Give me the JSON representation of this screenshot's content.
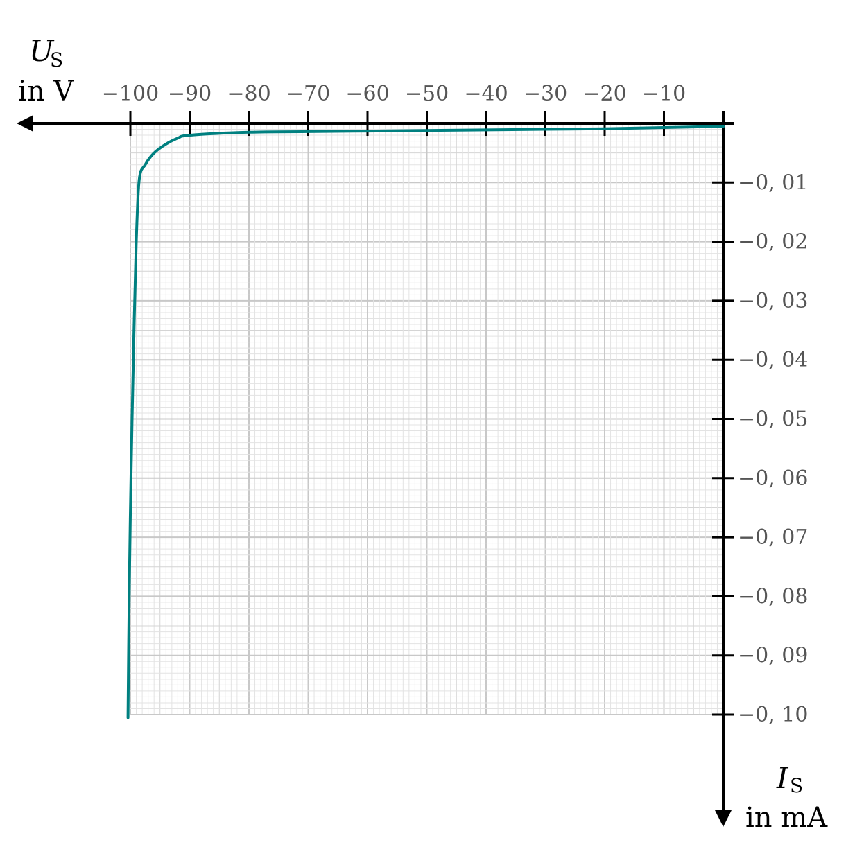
{
  "chart_data": {
    "type": "line",
    "colors": {
      "curve": "#008080",
      "axis": "#000000"
    },
    "x_axis": {
      "range": [
        -100,
        0
      ],
      "ticks": [
        -100,
        -90,
        -80,
        -70,
        -60,
        -50,
        -40,
        -30,
        -20,
        -10
      ],
      "tick_labels": [
        "−100",
        "−90",
        "−80",
        "−70",
        "−60",
        "−50",
        "−40",
        "−30",
        "−20",
        "−10"
      ],
      "label_symbol": "U",
      "label_subscript": "S",
      "label_unit": "in V",
      "direction": "increasing to the left (negative values to the left)"
    },
    "y_axis": {
      "range": [
        -0.1,
        0
      ],
      "ticks": [
        -0.01,
        -0.02,
        -0.03,
        -0.04,
        -0.05,
        -0.06,
        -0.07,
        -0.08,
        -0.09,
        -0.1
      ],
      "tick_labels": [
        "−0, 01",
        "−0, 02",
        "−0, 03",
        "−0, 04",
        "−0, 05",
        "−0, 06",
        "−0, 07",
        "−0, 08",
        "−0, 09",
        "−0, 10"
      ],
      "label_symbol": "I",
      "label_subscript": "S",
      "label_unit": "in mA",
      "direction": "increasing downward (negative values downward)"
    },
    "grid": true,
    "series": [
      {
        "points": [
          [
            0,
            -0.0005
          ],
          [
            -10,
            -0.0007
          ],
          [
            -20,
            -0.0009
          ],
          [
            -30,
            -0.001
          ],
          [
            -40,
            -0.0011
          ],
          [
            -50,
            -0.0012
          ],
          [
            -60,
            -0.0013
          ],
          [
            -70,
            -0.0014
          ],
          [
            -80,
            -0.0015
          ],
          [
            -90,
            -0.002
          ],
          [
            -92,
            -0.0025
          ],
          [
            -94,
            -0.0035
          ],
          [
            -96,
            -0.005
          ],
          [
            -97.5,
            -0.007
          ],
          [
            -98.5,
            -0.0095
          ],
          [
            -99,
            -0.02
          ],
          [
            -99.5,
            -0.04
          ],
          [
            -99.9,
            -0.06
          ],
          [
            -100.2,
            -0.08
          ],
          [
            -100.4,
            -0.1005
          ]
        ]
      }
    ]
  }
}
